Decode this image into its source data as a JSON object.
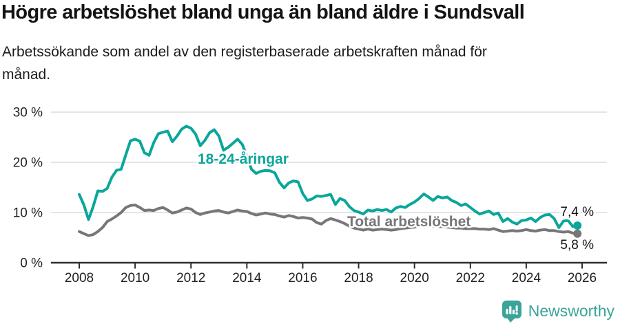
{
  "header": {
    "title": "Högre arbetslöshet bland unga än bland äldre i Sundsvall",
    "subtitle": "Arbetssökande som andel av den registerbaserade arbetskraften månad för månad."
  },
  "chart_data": {
    "type": "line",
    "title": "Högre arbetslöshet bland unga än bland äldre i Sundsvall",
    "subtitle": "Arbetssökande som andel av den registerbaserade arbetskraften månad för månad.",
    "x_start_year": 2008,
    "x_end_year": 2026,
    "points_per_year": 6,
    "x_tick_years": [
      2008,
      2010,
      2012,
      2014,
      2016,
      2018,
      2020,
      2022,
      2024,
      2026
    ],
    "y_ticks": [
      {
        "value": 0,
        "label": "0 %"
      },
      {
        "value": 10,
        "label": "10 %"
      },
      {
        "value": 20,
        "label": "20 %"
      },
      {
        "value": 30,
        "label": "30 %"
      }
    ],
    "ylim": [
      0,
      30
    ],
    "grid": "horizontal",
    "legend_position": "inline-labels",
    "series": [
      {
        "id": "youth",
        "name": "18-24-åringar",
        "inline_label": "18-24-åringar",
        "end_label": "7,4 %",
        "end_value": 7.4,
        "color": "#0BA69B",
        "values": [
          13.6,
          11.5,
          8.6,
          11.2,
          14.3,
          14.2,
          14.8,
          17.0,
          18.4,
          18.6,
          21.5,
          24.3,
          24.6,
          24.2,
          21.9,
          21.4,
          23.9,
          25.7,
          26.0,
          26.2,
          24.1,
          25.2,
          26.6,
          27.2,
          26.8,
          25.6,
          23.3,
          24.4,
          25.9,
          26.5,
          25.2,
          22.4,
          23.0,
          23.8,
          24.6,
          23.6,
          21.2,
          18.6,
          17.8,
          18.2,
          18.4,
          18.3,
          17.9,
          16.0,
          14.9,
          15.9,
          16.3,
          16.1,
          13.8,
          12.4,
          12.7,
          13.3,
          13.2,
          13.4,
          13.6,
          11.6,
          12.8,
          12.4,
          11.2,
          10.4,
          10.1,
          9.7,
          10.5,
          10.3,
          10.6,
          10.4,
          10.6,
          10.1,
          10.9,
          11.2,
          11.0,
          11.6,
          12.1,
          12.8,
          13.7,
          13.1,
          12.4,
          13.2,
          12.9,
          13.1,
          12.4,
          12.0,
          11.4,
          11.7,
          11.0,
          10.3,
          9.7,
          10.0,
          10.3,
          9.6,
          9.9,
          8.2,
          8.8,
          8.1,
          7.7,
          8.4,
          8.5,
          8.9,
          8.2,
          9.0,
          9.5,
          9.6,
          8.8,
          7.0,
          8.3,
          8.4,
          7.2,
          7.4
        ]
      },
      {
        "id": "total",
        "name": "Total arbetslöshet",
        "inline_label": "Total arbetslöshet",
        "end_label": "5,8 %",
        "end_value": 5.8,
        "color": "#77777B",
        "values": [
          6.2,
          5.8,
          5.4,
          5.6,
          6.2,
          7.0,
          8.2,
          8.7,
          9.3,
          10.0,
          11.0,
          11.4,
          11.5,
          11.0,
          10.4,
          10.5,
          10.4,
          10.8,
          11.0,
          10.5,
          9.9,
          10.1,
          10.5,
          10.9,
          10.7,
          10.0,
          9.6,
          9.9,
          10.1,
          10.3,
          10.4,
          10.1,
          9.9,
          10.2,
          10.5,
          10.3,
          10.2,
          9.8,
          9.5,
          9.7,
          9.9,
          9.7,
          9.6,
          9.3,
          9.1,
          9.4,
          9.2,
          8.9,
          9.0,
          8.9,
          8.7,
          8.0,
          7.7,
          8.4,
          8.8,
          8.5,
          8.2,
          7.8,
          7.3,
          6.9,
          6.7,
          6.5,
          6.7,
          6.5,
          6.6,
          6.7,
          6.6,
          6.5,
          6.6,
          6.8,
          6.9,
          7.0,
          7.1,
          7.4,
          7.6,
          7.5,
          7.3,
          7.2,
          7.2,
          7.1,
          7.0,
          6.9,
          6.9,
          6.8,
          6.8,
          6.8,
          6.7,
          6.7,
          6.6,
          6.8,
          6.5,
          6.2,
          6.3,
          6.4,
          6.3,
          6.4,
          6.6,
          6.4,
          6.3,
          6.5,
          6.6,
          6.4,
          6.4,
          6.2,
          6.1,
          6.2,
          5.9,
          5.8
        ]
      }
    ]
  },
  "footer": {
    "brand": "Newsworthy",
    "brand_icon": "newsworthy-speech-bubble-bar-chart-icon",
    "brand_color": "#3AA49A"
  }
}
